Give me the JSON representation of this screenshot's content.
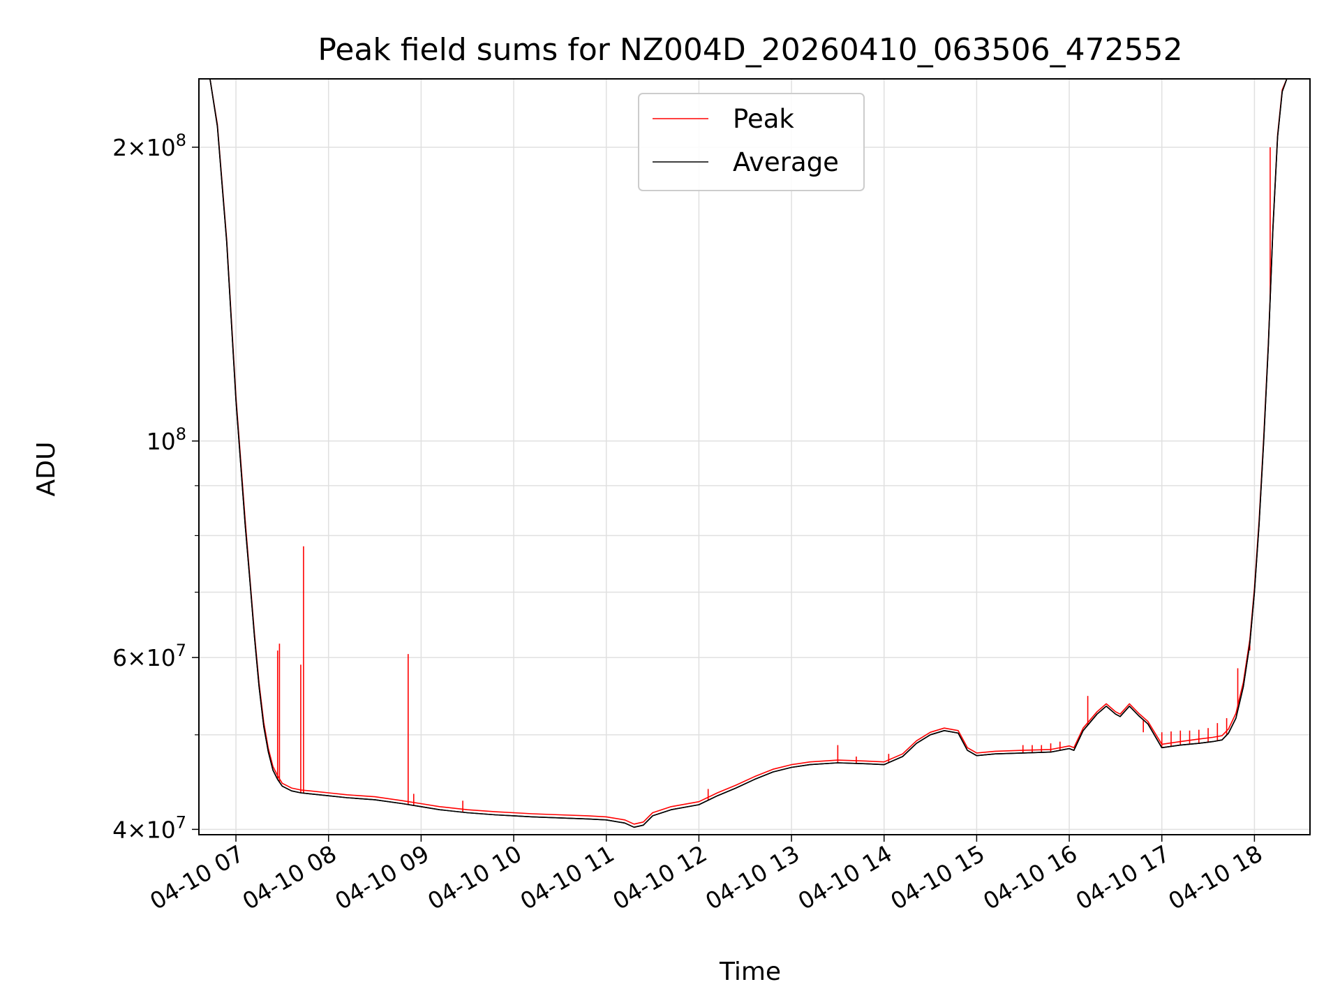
{
  "chart_data": {
    "type": "line",
    "title": "Peak field sums for NZ004D_20260410_063506_472552",
    "xlabel": "Time",
    "ylabel": "ADU",
    "y_scale": "log",
    "xlim": [
      6.6,
      18.6
    ],
    "ylim": [
      39500000,
      235000000
    ],
    "grid": true,
    "legend": {
      "position": "upper-center",
      "entries": [
        "Peak",
        "Average"
      ]
    },
    "colors": {
      "Peak": "#ff0000",
      "Average": "#000000",
      "grid": "#e0e0e0"
    },
    "x_ticks": [
      {
        "value": 7,
        "label": "04-10 07"
      },
      {
        "value": 8,
        "label": "04-10 08"
      },
      {
        "value": 9,
        "label": "04-10 09"
      },
      {
        "value": 10,
        "label": "04-10 10"
      },
      {
        "value": 11,
        "label": "04-10 11"
      },
      {
        "value": 12,
        "label": "04-10 12"
      },
      {
        "value": 13,
        "label": "04-10 13"
      },
      {
        "value": 14,
        "label": "04-10 14"
      },
      {
        "value": 15,
        "label": "04-10 15"
      },
      {
        "value": 16,
        "label": "04-10 16"
      },
      {
        "value": 17,
        "label": "04-10 17"
      },
      {
        "value": 18,
        "label": "04-10 18"
      }
    ],
    "y_major_ticks": [
      {
        "value": 40000000,
        "base": "4",
        "exp": "7"
      },
      {
        "value": 60000000,
        "base": "6",
        "exp": "7"
      },
      {
        "value": 100000000,
        "base": "",
        "exp": "8"
      },
      {
        "value": 200000000,
        "base": "2",
        "exp": "8"
      }
    ],
    "y_minor_ticks": [
      50000000,
      70000000,
      80000000,
      90000000
    ],
    "series": [
      {
        "name": "Average",
        "x": [
          6.72,
          6.8,
          6.9,
          7.0,
          7.05,
          7.1,
          7.15,
          7.2,
          7.25,
          7.3,
          7.35,
          7.4,
          7.45,
          7.5,
          7.6,
          7.7,
          7.8,
          8.0,
          8.2,
          8.5,
          8.8,
          9.0,
          9.2,
          9.5,
          9.8,
          10.0,
          10.2,
          10.5,
          10.8,
          11.0,
          11.2,
          11.3,
          11.4,
          11.5,
          11.7,
          12.0,
          12.2,
          12.4,
          12.6,
          12.8,
          13.0,
          13.2,
          13.5,
          13.8,
          14.0,
          14.2,
          14.35,
          14.5,
          14.65,
          14.8,
          14.9,
          15.0,
          15.2,
          15.5,
          15.8,
          16.0,
          16.05,
          16.15,
          16.3,
          16.4,
          16.5,
          16.55,
          16.65,
          16.75,
          16.85,
          17.0,
          17.2,
          17.4,
          17.55,
          17.65,
          17.72,
          17.8,
          17.88,
          17.95,
          18.0,
          18.05,
          18.1,
          18.15,
          18.2,
          18.25,
          18.3,
          18.35,
          18.4
        ],
        "values": [
          235000000,
          210000000,
          160000000,
          110000000,
          95000000,
          82000000,
          72000000,
          63000000,
          56000000,
          51000000,
          48000000,
          46000000,
          45000000,
          44300000,
          43800000,
          43600000,
          43500000,
          43300000,
          43100000,
          42900000,
          42500000,
          42200000,
          41900000,
          41600000,
          41400000,
          41300000,
          41200000,
          41100000,
          41000000,
          40900000,
          40600000,
          40200000,
          40400000,
          41300000,
          41900000,
          42400000,
          43300000,
          44100000,
          45000000,
          45800000,
          46300000,
          46600000,
          46800000,
          46700000,
          46600000,
          47500000,
          49000000,
          50000000,
          50500000,
          50200000,
          48200000,
          47600000,
          47800000,
          47900000,
          48000000,
          48400000,
          48200000,
          50500000,
          52500000,
          53500000,
          52500000,
          52200000,
          53500000,
          52300000,
          51300000,
          48500000,
          48800000,
          49000000,
          49200000,
          49400000,
          50200000,
          52000000,
          56000000,
          62000000,
          70000000,
          82000000,
          100000000,
          125000000,
          165000000,
          205000000,
          228000000,
          235000000,
          235000000
        ]
      },
      {
        "name": "Peak",
        "x": [
          6.72,
          6.8,
          6.9,
          7.0,
          7.05,
          7.1,
          7.15,
          7.2,
          7.25,
          7.3,
          7.35,
          7.4,
          7.45,
          7.5,
          7.6,
          7.7,
          7.8,
          8.0,
          8.2,
          8.5,
          8.8,
          9.0,
          9.2,
          9.5,
          9.8,
          10.0,
          10.2,
          10.5,
          10.8,
          11.0,
          11.2,
          11.3,
          11.4,
          11.5,
          11.7,
          12.0,
          12.2,
          12.4,
          12.6,
          12.8,
          13.0,
          13.2,
          13.5,
          13.8,
          14.0,
          14.2,
          14.35,
          14.5,
          14.65,
          14.8,
          14.9,
          15.0,
          15.2,
          15.5,
          15.8,
          16.0,
          16.05,
          16.15,
          16.3,
          16.4,
          16.5,
          16.55,
          16.65,
          16.75,
          16.85,
          17.0,
          17.2,
          17.4,
          17.55,
          17.65,
          17.72,
          17.8,
          17.88,
          17.95,
          18.0,
          18.05,
          18.1,
          18.15,
          18.2,
          18.25,
          18.3,
          18.35,
          18.4
        ],
        "values": [
          235000000,
          211000000,
          161000000,
          111000000,
          96000000,
          83000000,
          72500000,
          63500000,
          56500000,
          51500000,
          48400000,
          46400000,
          45400000,
          44600000,
          44100000,
          43900000,
          43800000,
          43600000,
          43400000,
          43200000,
          42800000,
          42500000,
          42200000,
          41900000,
          41700000,
          41600000,
          41500000,
          41400000,
          41300000,
          41200000,
          40900000,
          40500000,
          40700000,
          41600000,
          42200000,
          42700000,
          43600000,
          44400000,
          45300000,
          46100000,
          46600000,
          46900000,
          47100000,
          47000000,
          46900000,
          47800000,
          49300000,
          50300000,
          50800000,
          50500000,
          48500000,
          47900000,
          48100000,
          48200000,
          48300000,
          48700000,
          48500000,
          50800000,
          52800000,
          53800000,
          52800000,
          52500000,
          53800000,
          52600000,
          51600000,
          48900000,
          49200000,
          49500000,
          49700000,
          49900000,
          50700000,
          52600000,
          56600000,
          62600000,
          70700000,
          82800000,
          101000000,
          126000000,
          166000000,
          206000000,
          229000000,
          235000000,
          235000000
        ],
        "spikes": [
          [
            7.45,
            61000000
          ],
          [
            7.47,
            62000000
          ],
          [
            7.7,
            59000000
          ],
          [
            7.73,
            78000000
          ],
          [
            8.86,
            60500000
          ],
          [
            8.92,
            43500000
          ],
          [
            9.45,
            42800000
          ],
          [
            12.1,
            44000000
          ],
          [
            13.5,
            48800000
          ],
          [
            13.7,
            47500000
          ],
          [
            14.05,
            47800000
          ],
          [
            15.5,
            48800000
          ],
          [
            15.6,
            48800000
          ],
          [
            15.7,
            48800000
          ],
          [
            15.8,
            49000000
          ],
          [
            15.9,
            49200000
          ],
          [
            16.2,
            54800000
          ],
          [
            16.8,
            50300000
          ],
          [
            16.9,
            50300000
          ],
          [
            17.0,
            50300000
          ],
          [
            17.1,
            50400000
          ],
          [
            17.2,
            50500000
          ],
          [
            17.3,
            50500000
          ],
          [
            17.4,
            50600000
          ],
          [
            17.5,
            50800000
          ],
          [
            17.6,
            51400000
          ],
          [
            17.7,
            52000000
          ],
          [
            17.82,
            58500000
          ],
          [
            17.95,
            61000000
          ],
          [
            18.17,
            200000000
          ]
        ]
      }
    ]
  }
}
